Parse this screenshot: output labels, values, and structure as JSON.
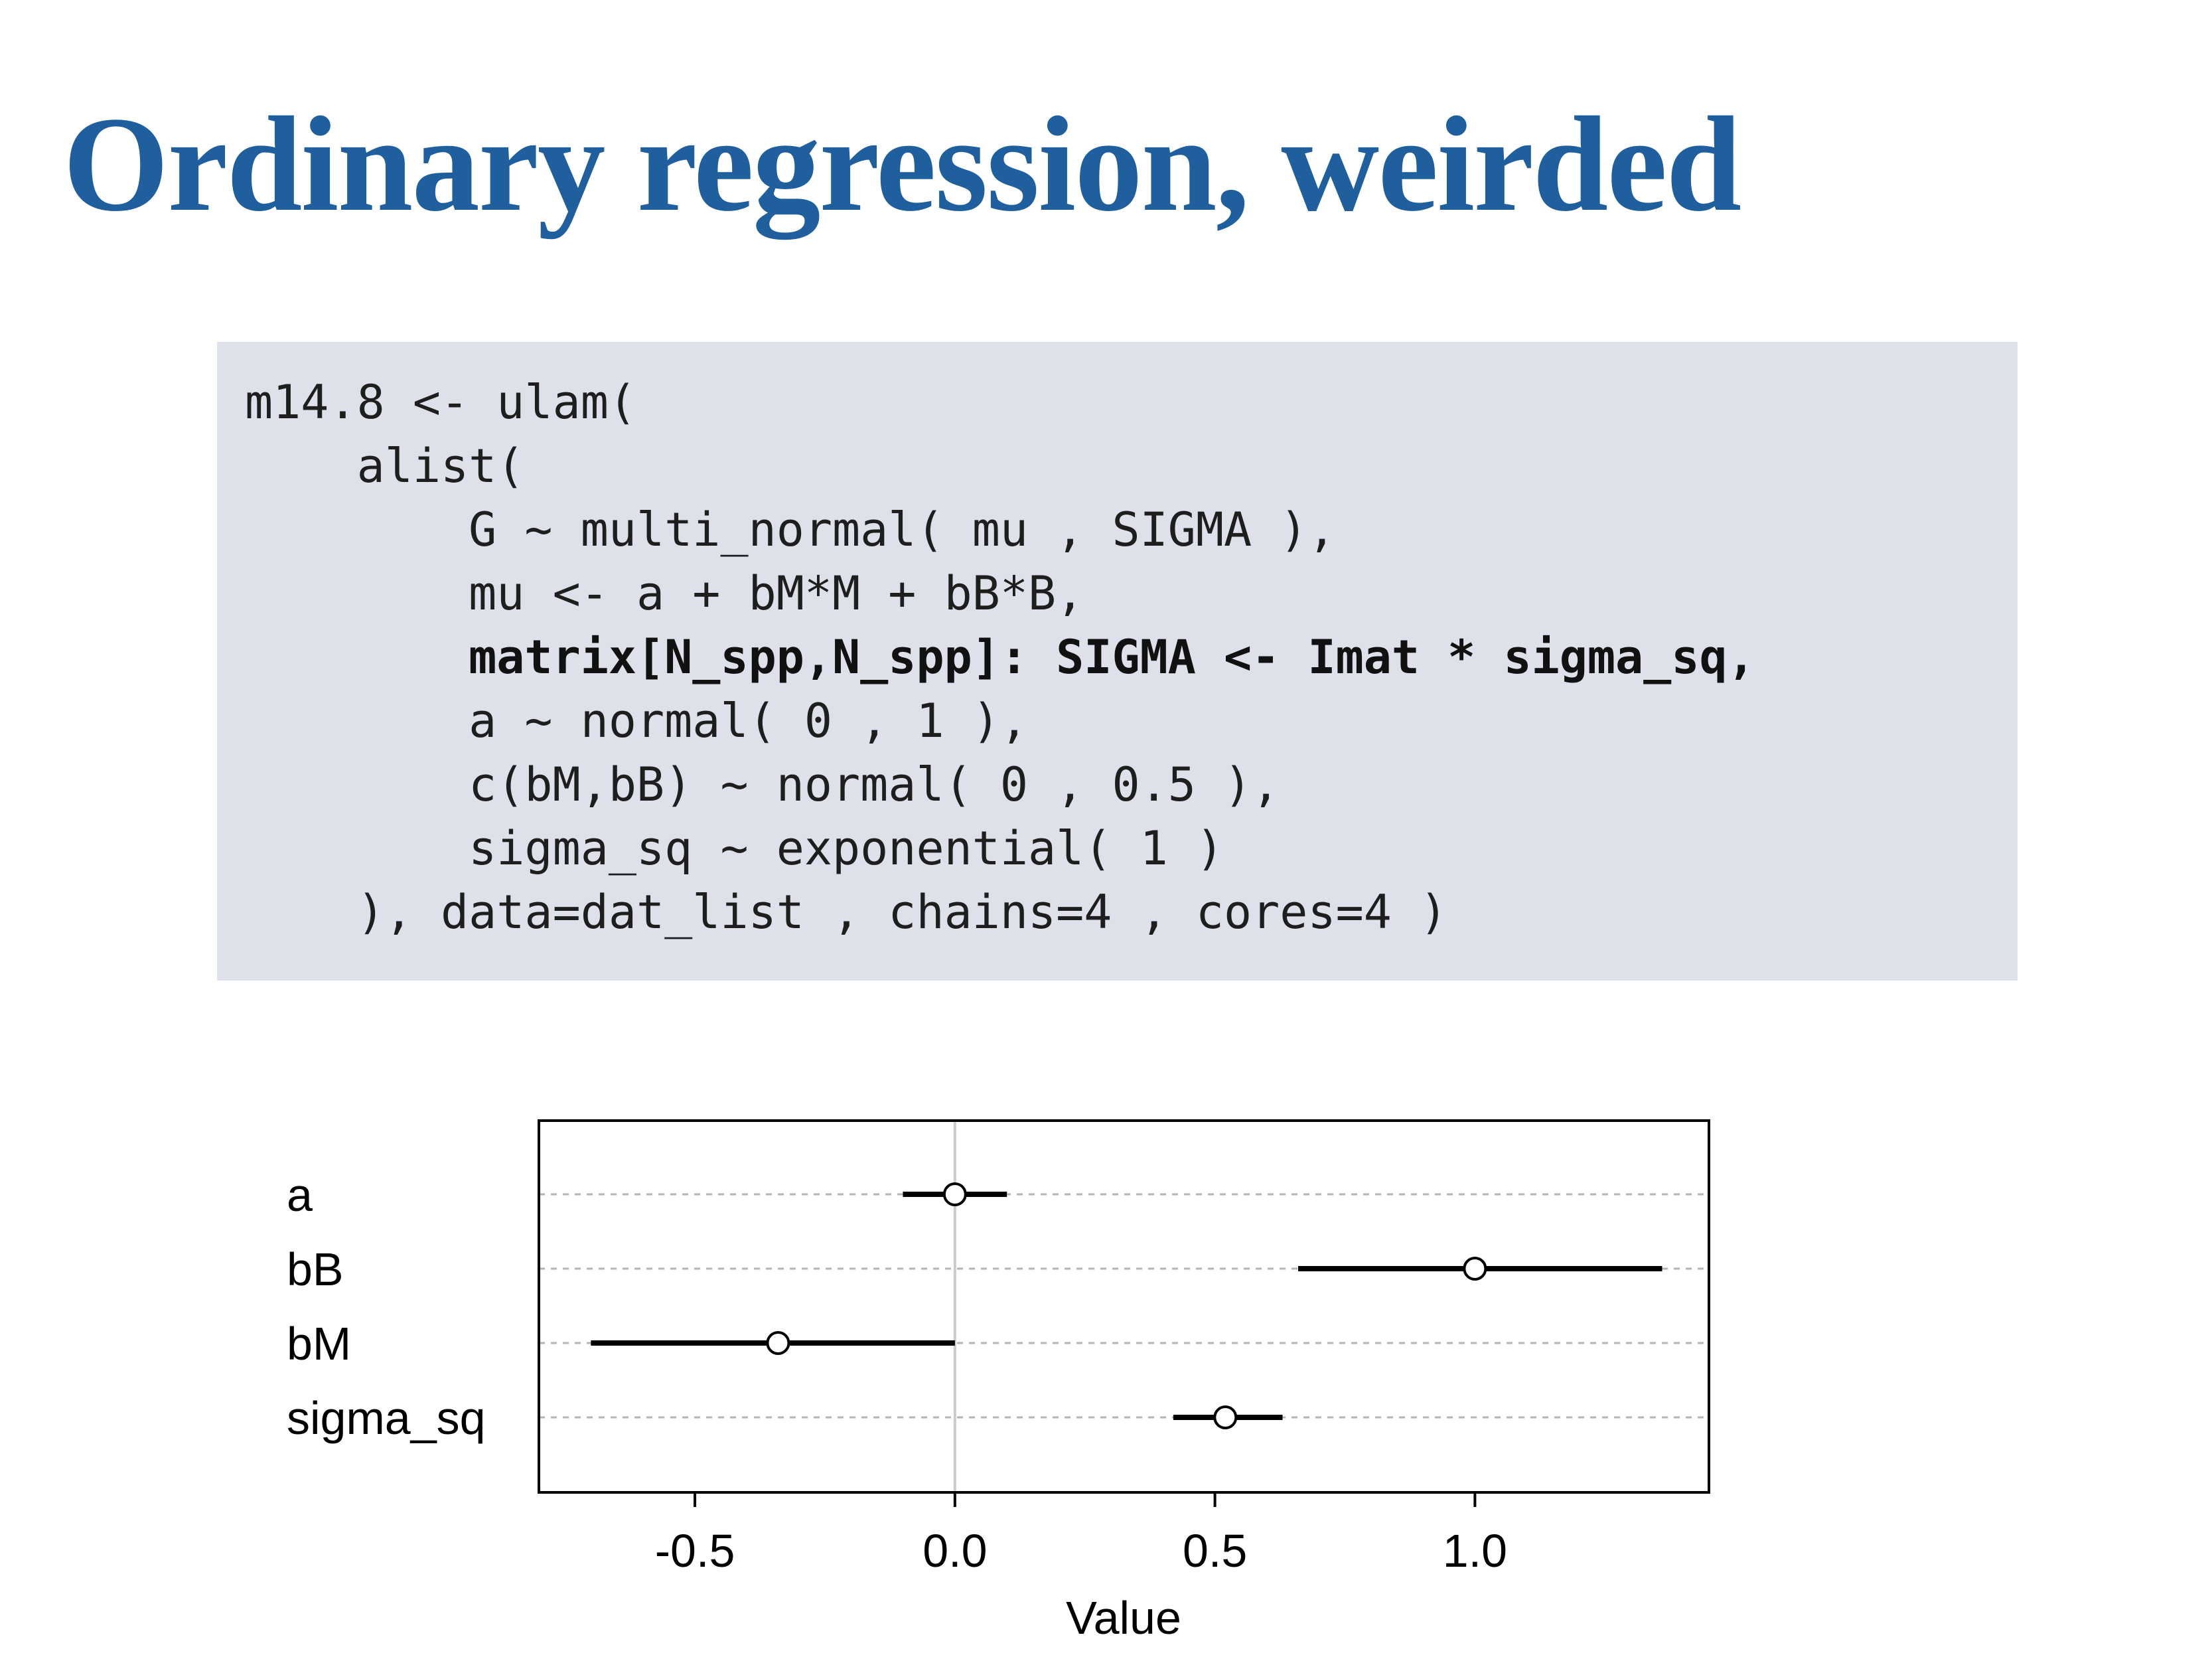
{
  "title": "Ordinary regression, weirded",
  "code": {
    "lines": [
      {
        "text": "m14.8 <- ulam(",
        "bold": false
      },
      {
        "text": "    alist(",
        "bold": false
      },
      {
        "text": "        G ~ multi_normal( mu , SIGMA ),",
        "bold": false
      },
      {
        "text": "        mu <- a + bM*M + bB*B,",
        "bold": false
      },
      {
        "text": "        matrix[N_spp,N_spp]: SIGMA <- Imat * sigma_sq,",
        "bold": true
      },
      {
        "text": "        a ~ normal( 0 , 1 ),",
        "bold": false
      },
      {
        "text": "        c(bM,bB) ~ normal( 0 , 0.5 ),",
        "bold": false
      },
      {
        "text": "        sigma_sq ~ exponential( 1 )",
        "bold": false
      },
      {
        "text": "    ), data=dat_list , chains=4 , cores=4 )",
        "bold": false
      }
    ]
  },
  "chart_data": {
    "type": "scatter",
    "title": "",
    "xlabel": "Value",
    "ylabel": "",
    "xlim": [
      -0.8,
      1.45
    ],
    "xticks": [
      -0.5,
      0.0,
      0.5,
      1.0
    ],
    "xtick_labels": [
      "-0.5",
      "0.0",
      "0.5",
      "1.0"
    ],
    "zero_line": true,
    "row_gridlines": "dashed",
    "parameters": [
      {
        "name": "a",
        "mean": 0.0,
        "lower": -0.1,
        "upper": 0.1
      },
      {
        "name": "bB",
        "mean": 1.0,
        "lower": 0.66,
        "upper": 1.36
      },
      {
        "name": "bM",
        "mean": -0.34,
        "lower": -0.7,
        "upper": 0.0
      },
      {
        "name": "sigma_sq",
        "mean": 0.52,
        "lower": 0.42,
        "upper": 0.63
      }
    ]
  }
}
